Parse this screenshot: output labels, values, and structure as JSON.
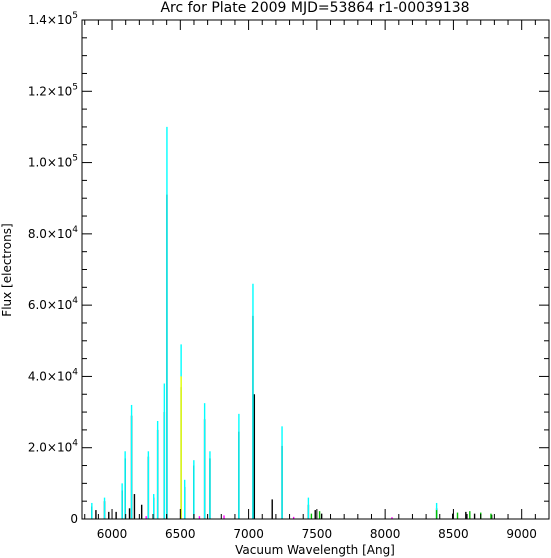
{
  "chart_data": {
    "type": "line",
    "title": "Arc for Plate 2009   MJD=53864   r1-00039138",
    "xlabel": "Vacuum Wavelength [Ang]",
    "ylabel": "Flux [electrons]",
    "xlim": [
      5780,
      9200
    ],
    "ylim": [
      0,
      140000
    ],
    "x_ticks": [
      6000,
      6500,
      7000,
      7500,
      8000,
      8500,
      9000
    ],
    "y_ticks": [
      {
        "value": 0,
        "mantissa": "0",
        "exp": ""
      },
      {
        "value": 20000,
        "mantissa": "2.0×10",
        "exp": "4"
      },
      {
        "value": 40000,
        "mantissa": "4.0×10",
        "exp": "4"
      },
      {
        "value": 60000,
        "mantissa": "6.0×10",
        "exp": "4"
      },
      {
        "value": 80000,
        "mantissa": "8.0×10",
        "exp": "4"
      },
      {
        "value": 100000,
        "mantissa": "1.0×10",
        "exp": "5"
      },
      {
        "value": 120000,
        "mantissa": "1.2×10",
        "exp": "5"
      },
      {
        "value": 140000,
        "mantissa": "1.4×10",
        "exp": "5"
      }
    ],
    "grid": false,
    "colors": {
      "main": "#000000",
      "cyan": "#00ffff",
      "green": "#00c000",
      "magenta": "#ff00ff",
      "yellow": "#ffff00"
    },
    "series": [
      {
        "color": "#000000",
        "lines": [
          {
            "x": 5852,
            "y": 3500
          },
          {
            "x": 5882,
            "y": 2500
          },
          {
            "x": 5945,
            "y": 5000
          },
          {
            "x": 5976,
            "y": 2000
          },
          {
            "x": 6030,
            "y": 2000
          },
          {
            "x": 6074,
            "y": 8000
          },
          {
            "x": 6096,
            "y": 17000
          },
          {
            "x": 6128,
            "y": 3000
          },
          {
            "x": 6143,
            "y": 29000
          },
          {
            "x": 6164,
            "y": 7000
          },
          {
            "x": 6217,
            "y": 4000
          },
          {
            "x": 6266,
            "y": 17500
          },
          {
            "x": 6305,
            "y": 6000
          },
          {
            "x": 6334,
            "y": 25000
          },
          {
            "x": 6383,
            "y": 30000
          },
          {
            "x": 6402,
            "y": 91000
          },
          {
            "x": 6506,
            "y": 37000
          },
          {
            "x": 6532,
            "y": 9000
          },
          {
            "x": 6599,
            "y": 15000
          },
          {
            "x": 6678,
            "y": 28000
          },
          {
            "x": 6717,
            "y": 17000
          },
          {
            "x": 6929,
            "y": 24500
          },
          {
            "x": 7032,
            "y": 57000
          },
          {
            "x": 7042,
            "y": 35000
          },
          {
            "x": 7173,
            "y": 5500
          },
          {
            "x": 7245,
            "y": 20500
          },
          {
            "x": 7438,
            "y": 4000
          },
          {
            "x": 7488,
            "y": 2500
          },
          {
            "x": 7535,
            "y": 1500
          },
          {
            "x": 8377,
            "y": 3000
          },
          {
            "x": 8495,
            "y": 1500
          },
          {
            "x": 8591,
            "y": 2000
          },
          {
            "x": 8655,
            "y": 1500
          },
          {
            "x": 8780,
            "y": 1200
          }
        ]
      },
      {
        "color": "#00ffff",
        "lines": [
          {
            "x": 5852,
            "y": 4500
          },
          {
            "x": 5945,
            "y": 6000
          },
          {
            "x": 6074,
            "y": 10000
          },
          {
            "x": 6096,
            "y": 19000
          },
          {
            "x": 6143,
            "y": 32000
          },
          {
            "x": 6266,
            "y": 19000
          },
          {
            "x": 6305,
            "y": 7000
          },
          {
            "x": 6334,
            "y": 27500
          },
          {
            "x": 6383,
            "y": 38000
          },
          {
            "x": 6402,
            "y": 110000
          },
          {
            "x": 6506,
            "y": 49000
          },
          {
            "x": 6532,
            "y": 11000
          },
          {
            "x": 6599,
            "y": 16500
          },
          {
            "x": 6678,
            "y": 32500
          },
          {
            "x": 6717,
            "y": 19000
          },
          {
            "x": 6929,
            "y": 29500
          },
          {
            "x": 7032,
            "y": 66000
          },
          {
            "x": 7245,
            "y": 26000
          },
          {
            "x": 7438,
            "y": 6000
          },
          {
            "x": 8377,
            "y": 4500
          }
        ]
      },
      {
        "color": "#00c000",
        "lines": [
          {
            "x": 7460,
            "y": 1500
          },
          {
            "x": 7520,
            "y": 2200
          },
          {
            "x": 8377,
            "y": 2500
          },
          {
            "x": 8530,
            "y": 1800
          },
          {
            "x": 8620,
            "y": 2200
          },
          {
            "x": 8700,
            "y": 1800
          },
          {
            "x": 8775,
            "y": 1500
          }
        ]
      },
      {
        "color": "#ff00ff",
        "lines": [
          {
            "x": 6250,
            "y": 800
          },
          {
            "x": 6640,
            "y": 800
          },
          {
            "x": 6820,
            "y": 1000
          },
          {
            "x": 7330,
            "y": 600
          },
          {
            "x": 8050,
            "y": 500
          }
        ]
      },
      {
        "color": "#ffff00",
        "lines": [
          {
            "x": 6506,
            "y": 40000
          }
        ]
      }
    ]
  }
}
